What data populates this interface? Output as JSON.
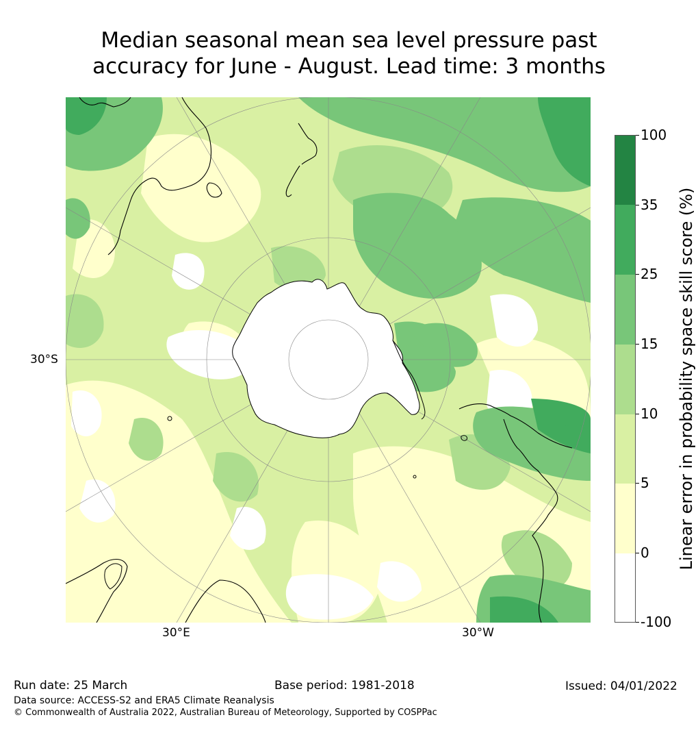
{
  "title": {
    "line1": "Median seasonal mean sea level pressure past",
    "line2": "accuracy for June - August. Lead time: 3 months"
  },
  "map": {
    "projection": "south-polar-stereographic",
    "lat_labels": {
      "left": "30°S"
    },
    "lon_labels": {
      "bottom_left": "30°E",
      "bottom_right": "30°W"
    },
    "colors": {
      "land_outline": "#000000",
      "graticule": "#888888"
    }
  },
  "colorbar": {
    "label": "Linear error in probability space skill score (%)",
    "ticks": [
      "100",
      "35",
      "25",
      "15",
      "10",
      "5",
      "0",
      "-100"
    ],
    "bins": [
      {
        "from": -100,
        "to": 0,
        "color": "#ffffff"
      },
      {
        "from": 0,
        "to": 5,
        "color": "#ffffcc"
      },
      {
        "from": 5,
        "to": 10,
        "color": "#d9f0a3"
      },
      {
        "from": 10,
        "to": 15,
        "color": "#addd8e"
      },
      {
        "from": 15,
        "to": 25,
        "color": "#78c679"
      },
      {
        "from": 25,
        "to": 35,
        "color": "#41ab5d"
      },
      {
        "from": 35,
        "to": 100,
        "color": "#238443"
      }
    ]
  },
  "footer": {
    "run_date": "Run date: 25 March",
    "base_period": "Base period: 1981-2018",
    "issued": "Issued: 04/01/2022",
    "data_source": "Data source: ACCESS-S2 and ERA5 Climate Reanalysis",
    "copyright": "© Commonwealth of Australia 2022, Australian Bureau of Meteorology, Supported by COSPPac"
  }
}
